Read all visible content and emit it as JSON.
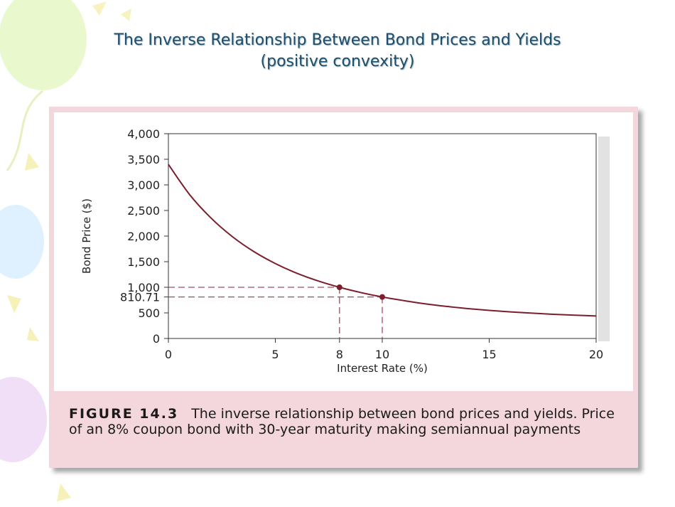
{
  "slide": {
    "title_line1": "The Inverse Relationship Between Bond Prices and Yields",
    "title_line2": "(positive convexity)"
  },
  "caption": {
    "figure_label": "FIGURE 14.3",
    "text": "The inverse relationship between bond prices and yields. Price of an 8% coupon bond with 30-year maturity making semiannual payments"
  },
  "colors": {
    "curve": "#7a1f2b",
    "guide_lines": "#b0485a",
    "frame": "#f4d7dc",
    "title": "#1f4e6b"
  },
  "chart_data": {
    "type": "line",
    "title": "",
    "xlabel": "Interest Rate (%)",
    "ylabel": "Bond Price ($)",
    "xlim": [
      0,
      20
    ],
    "ylim": [
      0,
      4000
    ],
    "x_ticks": [
      0,
      5,
      8,
      10,
      15,
      20
    ],
    "x_tick_labels": [
      "0",
      "5",
      "8",
      "10",
      "15",
      "20"
    ],
    "y_ticks": [
      0,
      500,
      810.71,
      1000,
      1500,
      2000,
      2500,
      3000,
      3500,
      4000
    ],
    "y_tick_labels": [
      "0",
      "500",
      "810.71",
      "1,000",
      "1,500",
      "2,000",
      "2,500",
      "3,000",
      "3,500",
      "4,000"
    ],
    "grid": false,
    "series": [
      {
        "x": [
          0,
          1,
          2,
          3,
          4,
          5,
          6,
          7,
          8,
          9,
          10,
          11,
          12,
          13,
          14,
          15,
          16,
          17,
          18,
          19,
          20
        ],
        "y": [
          3400,
          2806,
          2350,
          1986,
          1696,
          1464,
          1275,
          1124,
          1000,
          897,
          810.71,
          740,
          677,
          626,
          584,
          549,
          519,
          494,
          473,
          455,
          440
        ]
      }
    ],
    "highlighted_points": [
      {
        "x": 8,
        "y": 1000
      },
      {
        "x": 10,
        "y": 810.71
      }
    ]
  }
}
